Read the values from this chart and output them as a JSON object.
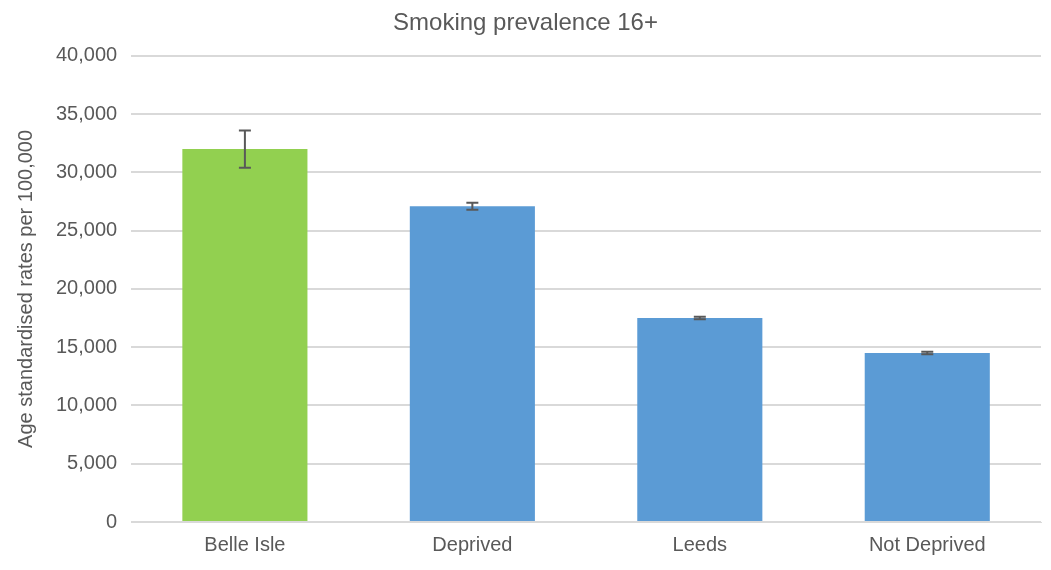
{
  "chart_data": {
    "type": "bar",
    "title": "Smoking prevalence 16+",
    "ylabel": "Age standardised rates per 100,000",
    "categories": [
      "Belle Isle",
      "Deprived",
      "Leeds",
      "Not Deprived"
    ],
    "values": [
      32000,
      27100,
      17500,
      14500
    ],
    "colors": [
      "#92d050",
      "#5b9bd5",
      "#5b9bd5",
      "#5b9bd5"
    ],
    "errors": [
      [
        30400,
        33600
      ],
      [
        26800,
        27400
      ],
      [
        17400,
        17600
      ],
      [
        14400,
        14600
      ]
    ],
    "ylim": [
      0,
      40000
    ],
    "yticks": [
      0,
      {
        "value": 5000,
        "label": "5,000"
      },
      {
        "value": 10000,
        "label": "10,000"
      },
      {
        "value": 15000,
        "label": "15,000"
      },
      {
        "value": 20000,
        "label": "20,000"
      },
      {
        "value": 25000,
        "label": "25,000"
      },
      {
        "value": 30000,
        "label": "30,000"
      },
      {
        "value": 35000,
        "label": "35,000"
      },
      {
        "value": 40000,
        "label": "40,000"
      }
    ],
    "grid": "y",
    "legend": false
  }
}
